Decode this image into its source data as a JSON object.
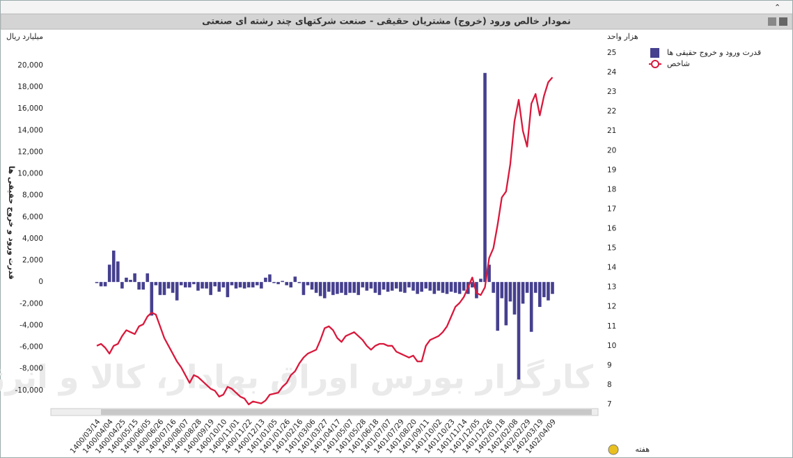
{
  "chart_data": {
    "type": "bar-line",
    "title": "نمودار خالص ورود (خروج) مشتریان حقیقی - صنعت شرکتهای چند رشته ای صنعتی",
    "y_unit": "میلیارد ریال",
    "y2_unit": "هزار واحد",
    "y_label": "قدرت ورود و خروج حقیقی ها",
    "x_label": "هفته",
    "watermark": "کارگزار بورس اوراق بهادار، کالا و انرژی",
    "categories": [
      "1400/03/14",
      null,
      null,
      "1400/04/04",
      null,
      null,
      "1400/04/25",
      null,
      null,
      "1400/05/15",
      null,
      null,
      "1400/06/05",
      null,
      null,
      "1400/06/26",
      null,
      null,
      "1400/07/16",
      null,
      null,
      "1400/08/07",
      null,
      null,
      "1400/08/28",
      null,
      null,
      "1400/09/19",
      null,
      null,
      "1400/10/10",
      null,
      null,
      "1400/11/01",
      null,
      null,
      "1400/11/22",
      null,
      null,
      "1400/12/13",
      null,
      null,
      "1401/01/05",
      null,
      null,
      "1401/01/26",
      null,
      null,
      "1401/02/16",
      null,
      null,
      "1401/03/06",
      null,
      null,
      "1401/03/27",
      null,
      null,
      "1401/04/17",
      null,
      null,
      "1401/05/07",
      null,
      null,
      "1401/05/28",
      null,
      null,
      "1401/06/18",
      null,
      null,
      "1401/07/07",
      null,
      null,
      "1401/07/29",
      null,
      null,
      "1401/08/20",
      null,
      null,
      "1401/09/11",
      null,
      null,
      "1401/10/02",
      null,
      null,
      "1401/10/23",
      null,
      null,
      "1401/11/14",
      null,
      null,
      "1401/12/05",
      null,
      null,
      "1401/12/26",
      null,
      null,
      "1402/01/18",
      null,
      null,
      "1402/02/08",
      null,
      null,
      "1402/02/29",
      null,
      null,
      "1402/03/19",
      null,
      null,
      "1402/04/09"
    ],
    "series": [
      {
        "name": "قدرت ورود و خروج حقیقی ها",
        "type": "bar",
        "color": "#46408f",
        "values": [
          -100,
          -400,
          -400,
          1600,
          2900,
          1900,
          -600,
          400,
          200,
          800,
          -700,
          -700,
          800,
          -3100,
          -300,
          -1200,
          -1200,
          -600,
          -1000,
          -1700,
          -300,
          -500,
          -500,
          -200,
          -800,
          -600,
          -600,
          -1200,
          -400,
          -900,
          -500,
          -1400,
          -300,
          -600,
          -500,
          -600,
          -500,
          -500,
          -300,
          -600,
          400,
          700,
          -100,
          -200,
          100,
          -300,
          -500,
          500,
          -100,
          -1200,
          -300,
          -700,
          -1000,
          -1300,
          -1500,
          -900,
          -1200,
          -1100,
          -1000,
          -1200,
          -1000,
          -1000,
          -1200,
          -500,
          -800,
          -600,
          -1000,
          -1200,
          -700,
          -900,
          -800,
          -600,
          -900,
          -1000,
          -500,
          -800,
          -1100,
          -900,
          -600,
          -800,
          -1100,
          -800,
          -1000,
          -1100,
          -900,
          -1000,
          -1100,
          -800,
          -1100,
          -500,
          -1500,
          300,
          19300,
          1600,
          -1000,
          -4500,
          -1500,
          -4000,
          -1800,
          -3000,
          -9000,
          -2000,
          -1000,
          -4600,
          -1000,
          -2300,
          -1400,
          -1700,
          -1100
        ]
      },
      {
        "name": "شاخص",
        "type": "line",
        "axis": "y2",
        "color": "#d9183b",
        "values": [
          10.0,
          10.1,
          9.9,
          9.6,
          10.0,
          10.1,
          10.5,
          10.8,
          10.7,
          10.6,
          11.0,
          11.1,
          11.5,
          11.7,
          11.6,
          11.0,
          10.4,
          10.0,
          9.6,
          9.2,
          8.9,
          8.5,
          8.1,
          8.5,
          8.4,
          8.2,
          8.0,
          7.8,
          7.7,
          7.4,
          7.5,
          7.9,
          7.8,
          7.6,
          7.4,
          7.3,
          7.0,
          7.15,
          7.1,
          7.05,
          7.2,
          7.5,
          7.55,
          7.6,
          7.9,
          8.1,
          8.5,
          8.7,
          9.1,
          9.4,
          9.6,
          9.7,
          9.8,
          10.3,
          10.9,
          11.0,
          10.8,
          10.4,
          10.2,
          10.5,
          10.6,
          10.7,
          10.5,
          10.3,
          10.0,
          9.8,
          10.0,
          10.1,
          10.1,
          10.0,
          10.0,
          9.7,
          9.6,
          9.5,
          9.4,
          9.5,
          9.2,
          9.2,
          10.0,
          10.3,
          10.4,
          10.5,
          10.7,
          11.0,
          11.5,
          12.0,
          12.2,
          12.5,
          13.0,
          13.5,
          12.7,
          12.6,
          13.0,
          14.5,
          15.0,
          16.2,
          17.6,
          17.9,
          19.3,
          21.5,
          22.6,
          21.0,
          20.2,
          22.4,
          22.9,
          21.8,
          22.8,
          23.5,
          23.75
        ]
      }
    ],
    "ylim": [
      -11300,
      21150
    ],
    "yticks": [
      {
        "value": -10000,
        "label": "-10,000"
      },
      {
        "value": -8000,
        "label": "-8,000"
      },
      {
        "value": -6000,
        "label": "-6,000"
      },
      {
        "value": -4000,
        "label": "-4,000"
      },
      {
        "value": -2000,
        "label": "-2,000"
      },
      0,
      {
        "value": 2000,
        "label": "2,000"
      },
      {
        "value": 4000,
        "label": "4,000"
      },
      {
        "value": 6000,
        "label": "6,000"
      },
      {
        "value": 8000,
        "label": "8,000"
      },
      {
        "value": 10000,
        "label": "10,000"
      },
      {
        "value": 12000,
        "label": "12,000"
      },
      {
        "value": 14000,
        "label": "14,000"
      },
      {
        "value": 16000,
        "label": "16,000"
      },
      {
        "value": 18000,
        "label": "18,000"
      },
      {
        "value": 20000,
        "label": "20,000"
      }
    ],
    "y2lim": [
      7,
      25
    ],
    "y2ticks": [
      7,
      8,
      9,
      10,
      11,
      12,
      13,
      14,
      15,
      16,
      17,
      18,
      19,
      20,
      21,
      22,
      23,
      24,
      25
    ],
    "grid": false,
    "legend": "top-right"
  }
}
